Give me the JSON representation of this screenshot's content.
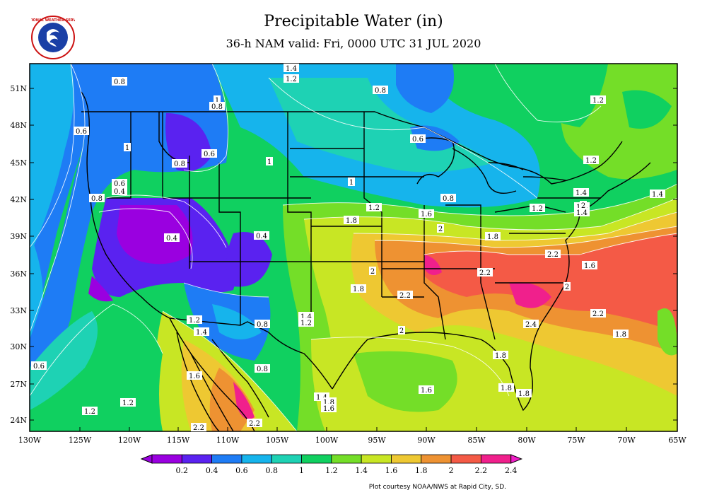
{
  "header": {
    "title": "Precipitable Water (in)",
    "subtitle": "36-h NAM valid: Fri, 0000 UTC 31 JUL 2020"
  },
  "logo": {
    "icon": "nws-logo-icon",
    "text": "NATIONAL WEATHER SERVICE"
  },
  "credit": "Plot courtesy NOAA/NWS at Rapid City, SD.",
  "map": {
    "lat_ticks": [
      "51N",
      "48N",
      "45N",
      "42N",
      "39N",
      "36N",
      "33N",
      "30N",
      "27N",
      "24N"
    ],
    "lon_ticks": [
      "130W",
      "125W",
      "120W",
      "115W",
      "110W",
      "105W",
      "100W",
      "95W",
      "90W",
      "85W",
      "80W",
      "75W",
      "70W",
      "65W"
    ],
    "contour_labels": [
      {
        "text": "1.4"
      },
      {
        "text": "1.2"
      },
      {
        "text": "0.8"
      },
      {
        "text": "0.8"
      },
      {
        "text": "1.2"
      },
      {
        "text": "1"
      },
      {
        "text": "0.8"
      },
      {
        "text": "0.6"
      },
      {
        "text": "1"
      },
      {
        "text": "0.6"
      },
      {
        "text": "0.6"
      },
      {
        "text": "0.8"
      },
      {
        "text": "1"
      },
      {
        "text": "1.2"
      },
      {
        "text": "0.6"
      },
      {
        "text": "0.4"
      },
      {
        "text": "0.8"
      },
      {
        "text": "1"
      },
      {
        "text": "0.4"
      },
      {
        "text": "0.4"
      },
      {
        "text": "1.2"
      },
      {
        "text": "1.4"
      },
      {
        "text": "1.6"
      },
      {
        "text": "1.8"
      },
      {
        "text": "2"
      },
      {
        "text": "0.8"
      },
      {
        "text": "1.2"
      },
      {
        "text": "1.4"
      },
      {
        "text": "1.8"
      },
      {
        "text": "2.2"
      },
      {
        "text": "1.6"
      },
      {
        "text": "1.4"
      },
      {
        "text": "2"
      },
      {
        "text": "1.8"
      },
      {
        "text": "2.2"
      },
      {
        "text": "2"
      },
      {
        "text": "2.2"
      },
      {
        "text": "2.4"
      },
      {
        "text": "1.4"
      },
      {
        "text": "1.2"
      },
      {
        "text": "0.8"
      },
      {
        "text": "1.2"
      },
      {
        "text": "1.4"
      },
      {
        "text": "1.6"
      },
      {
        "text": "0.8"
      },
      {
        "text": "1.4"
      },
      {
        "text": "1.8"
      },
      {
        "text": "1.6"
      },
      {
        "text": "1.8"
      },
      {
        "text": "2"
      },
      {
        "text": "1.8"
      },
      {
        "text": "2.2"
      },
      {
        "text": "1.8"
      },
      {
        "text": "0.6"
      },
      {
        "text": "1.2"
      },
      {
        "text": "1.2"
      },
      {
        "text": "2.2"
      },
      {
        "text": "2.2"
      },
      {
        "text": "1.8"
      },
      {
        "text": "1.6"
      },
      {
        "text": "2"
      },
      {
        "text": "1.4"
      }
    ]
  },
  "colorbar": {
    "labels": [
      "0.2",
      "0.4",
      "0.6",
      "0.8",
      "1",
      "1.2",
      "1.4",
      "1.6",
      "1.8",
      "2",
      "2.2",
      "2.4"
    ],
    "colors": [
      "#9a00e0",
      "#5a22f0",
      "#1e7cf5",
      "#16b4ec",
      "#1ed2b4",
      "#10d060",
      "#74de28",
      "#c8e624",
      "#eec832",
      "#ee9232",
      "#f45a46",
      "#f0208c"
    ]
  }
}
